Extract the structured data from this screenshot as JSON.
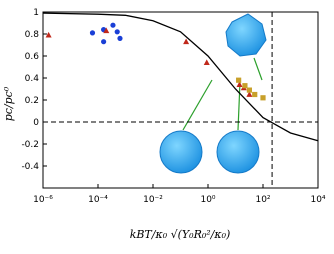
{
  "chart_data": {
    "type": "scatter",
    "xlog": true,
    "xlim": [
      1e-06,
      10000
    ],
    "ylim": [
      -0.6,
      1
    ],
    "xticks": [
      {
        "value": 1e-06,
        "label": "10⁻⁶"
      },
      {
        "value": 0.0001,
        "label": "10⁻⁴"
      },
      {
        "value": 0.01,
        "label": "10⁻²"
      },
      {
        "value": 1,
        "label": "10⁰"
      },
      {
        "value": 100,
        "label": "10²"
      },
      {
        "value": 10000,
        "label": "10⁴"
      }
    ],
    "yticks": [
      1,
      0.8,
      0.6,
      0.4,
      0.2,
      0,
      -0.2,
      -0.4
    ],
    "ylabel": "pc/pc⁰",
    "xlabel": "kBT/κ₀ √(Y₀R₀²/κ₀)",
    "hline": 0,
    "vline": 214,
    "series": [
      {
        "type": "line",
        "color": "#000000",
        "x": [
          1e-06,
          0.0001,
          0.001,
          0.01,
          0.1,
          1,
          10,
          100,
          1000,
          10000
        ],
        "values": [
          0.99,
          0.98,
          0.97,
          0.92,
          0.82,
          0.6,
          0.3,
          0.04,
          -0.1,
          -0.17
        ]
      },
      {
        "type": "scatter",
        "marker": "circle",
        "color": "#1a3fd6",
        "x": [
          6.3e-05,
          0.00016,
          0.00035,
          0.0005,
          0.00016,
          0.00063
        ],
        "values": [
          0.81,
          0.84,
          0.88,
          0.82,
          0.73,
          0.76
        ]
      },
      {
        "type": "scatter",
        "marker": "triangle",
        "color": "#c0281b",
        "x": [
          1.6e-06,
          0.0002,
          0.16,
          0.9,
          14,
          20,
          32
        ],
        "values": [
          0.79,
          0.83,
          0.73,
          0.54,
          0.34,
          0.31,
          0.25
        ]
      },
      {
        "type": "scatter",
        "marker": "square",
        "color": "#c8a02a",
        "x": [
          13,
          22,
          32,
          50,
          100
        ],
        "values": [
          0.38,
          0.33,
          0.29,
          0.25,
          0.22
        ]
      }
    ]
  }
}
